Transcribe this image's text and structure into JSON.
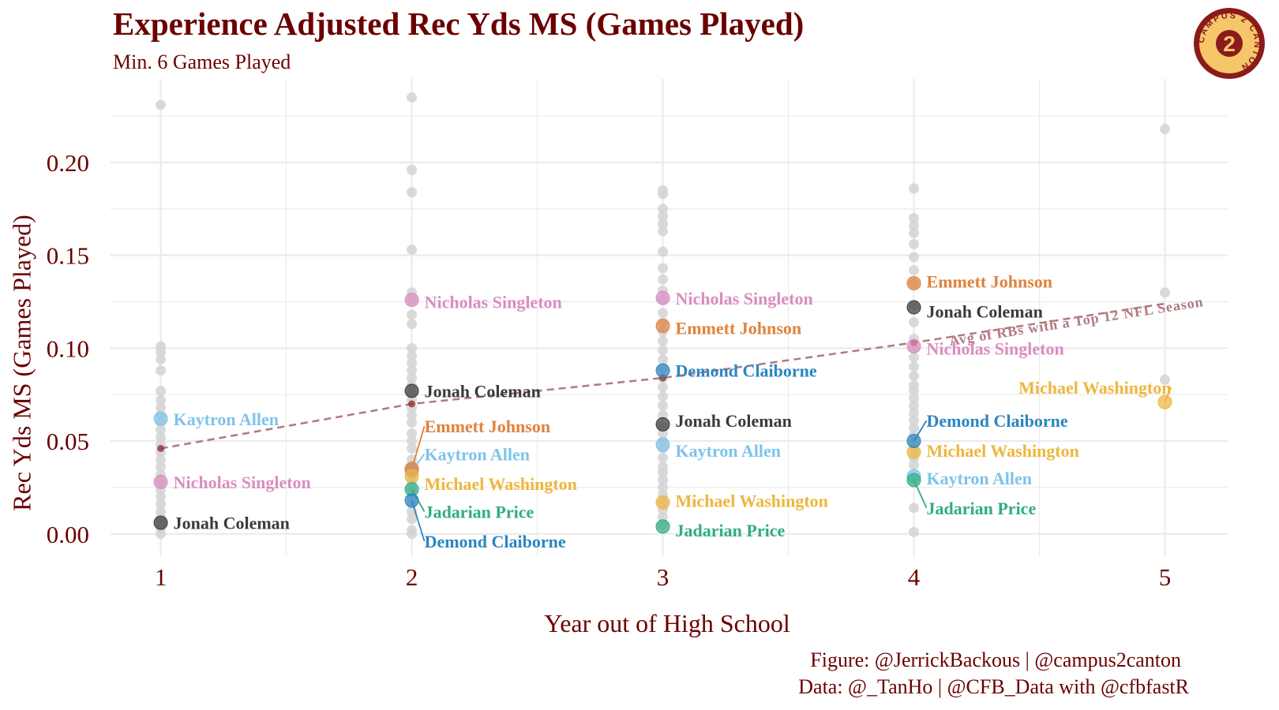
{
  "chart_data": {
    "type": "scatter",
    "title": "Experience Adjusted Rec Yds MS (Games Played)",
    "subtitle": "Min. 6 Games Played",
    "xlabel": "Year out of High School",
    "ylabel": "Rec Yds MS (Games Played)",
    "xlim": [
      0.8,
      5.25
    ],
    "ylim": [
      -0.012,
      0.245
    ],
    "x_ticks": [
      1,
      2,
      3,
      4,
      5
    ],
    "y_ticks": [
      0.0,
      0.05,
      0.1,
      0.15,
      0.2
    ],
    "y_tick_labels": [
      "0.00",
      "0.05",
      "0.10",
      "0.15",
      "0.20"
    ],
    "grid": true,
    "background_points": [
      {
        "x": 1,
        "y": [
          0.231,
          0.101,
          0.098,
          0.094,
          0.088,
          0.077,
          0.072,
          0.068,
          0.064,
          0.06,
          0.056,
          0.052,
          0.048,
          0.044,
          0.04,
          0.036,
          0.032,
          0.028,
          0.024,
          0.02,
          0.016,
          0.012,
          0.009,
          0.006,
          0.003,
          0.0
        ]
      },
      {
        "x": 2,
        "y": [
          0.235,
          0.196,
          0.184,
          0.153,
          0.13,
          0.126,
          0.118,
          0.113,
          0.1,
          0.096,
          0.092,
          0.088,
          0.084,
          0.08,
          0.076,
          0.072,
          0.068,
          0.064,
          0.06,
          0.054,
          0.05,
          0.046,
          0.04,
          0.036,
          0.032,
          0.028,
          0.024,
          0.02,
          0.016,
          0.012,
          0.008,
          0.002,
          0.0
        ]
      },
      {
        "x": 3,
        "y": [
          0.185,
          0.183,
          0.175,
          0.171,
          0.167,
          0.163,
          0.152,
          0.143,
          0.137,
          0.131,
          0.126,
          0.119,
          0.114,
          0.109,
          0.104,
          0.099,
          0.094,
          0.089,
          0.084,
          0.079,
          0.074,
          0.069,
          0.064,
          0.058,
          0.054,
          0.05,
          0.046,
          0.041,
          0.036,
          0.033,
          0.029,
          0.025,
          0.021,
          0.017,
          0.013,
          0.009,
          0.005
        ]
      },
      {
        "x": 4,
        "y": [
          0.186,
          0.17,
          0.166,
          0.162,
          0.156,
          0.149,
          0.142,
          0.135,
          0.123,
          0.114,
          0.105,
          0.1,
          0.095,
          0.09,
          0.085,
          0.08,
          0.077,
          0.073,
          0.069,
          0.065,
          0.061,
          0.057,
          0.053,
          0.049,
          0.045,
          0.041,
          0.037,
          0.014,
          0.001
        ]
      },
      {
        "x": 5,
        "y": [
          0.218,
          0.13,
          0.083
        ]
      }
    ],
    "avg_line": {
      "label": "Avg of RBs with a Top 12 NFL Season",
      "points": [
        {
          "x": 1,
          "y": 0.046
        },
        {
          "x": 2,
          "y": 0.07
        },
        {
          "x": 3,
          "y": 0.084
        },
        {
          "x": 4,
          "y": 0.103
        },
        {
          "x": 5,
          "y": 0.124
        }
      ]
    },
    "series": [
      {
        "name": "Kaytron Allen",
        "color": "#7EC3EA",
        "points": [
          {
            "x": 1,
            "y": 0.062
          },
          {
            "x": 2,
            "y": 0.034
          },
          {
            "x": 3,
            "y": 0.048
          },
          {
            "x": 4,
            "y": 0.031
          }
        ]
      },
      {
        "name": "Nicholas Singleton",
        "color": "#D98DC0",
        "points": [
          {
            "x": 1,
            "y": 0.028
          },
          {
            "x": 2,
            "y": 0.126
          },
          {
            "x": 3,
            "y": 0.127
          },
          {
            "x": 4,
            "y": 0.101
          }
        ]
      },
      {
        "name": "Jonah Coleman",
        "color": "#3A3A3A",
        "points": [
          {
            "x": 1,
            "y": 0.006
          },
          {
            "x": 2,
            "y": 0.077
          },
          {
            "x": 3,
            "y": 0.059
          },
          {
            "x": 4,
            "y": 0.122
          }
        ]
      },
      {
        "name": "Emmett Johnson",
        "color": "#E0823A",
        "points": [
          {
            "x": 2,
            "y": 0.035
          },
          {
            "x": 3,
            "y": 0.112
          },
          {
            "x": 4,
            "y": 0.135
          }
        ]
      },
      {
        "name": "Michael Washington",
        "color": "#EEB63E",
        "points": [
          {
            "x": 2,
            "y": 0.031
          },
          {
            "x": 3,
            "y": 0.017
          },
          {
            "x": 4,
            "y": 0.044
          },
          {
            "x": 5,
            "y": 0.071
          }
        ]
      },
      {
        "name": "Jadarian Price",
        "color": "#2FAD84",
        "points": [
          {
            "x": 2,
            "y": 0.024
          },
          {
            "x": 3,
            "y": 0.004
          },
          {
            "x": 4,
            "y": 0.029
          }
        ]
      },
      {
        "name": "Demond Claiborne",
        "color": "#2A86C0",
        "points": [
          {
            "x": 2,
            "y": 0.018
          },
          {
            "x": 3,
            "y": 0.088
          },
          {
            "x": 4,
            "y": 0.05
          }
        ]
      }
    ],
    "labels": [
      {
        "text": "Kaytron Allen",
        "series": 0,
        "x": 1,
        "y": 0.062,
        "ly": 0.062
      },
      {
        "text": "Nicholas Singleton",
        "series": 1,
        "x": 1,
        "y": 0.028,
        "ly": 0.028
      },
      {
        "text": "Jonah Coleman",
        "series": 2,
        "x": 1,
        "y": 0.006,
        "ly": 0.006
      },
      {
        "text": "Nicholas Singleton",
        "series": 1,
        "x": 2,
        "y": 0.126,
        "ly": 0.125
      },
      {
        "text": "Jonah Coleman",
        "series": 2,
        "x": 2,
        "y": 0.077,
        "ly": 0.077
      },
      {
        "text": "Emmett Johnson",
        "series": 3,
        "x": 2,
        "y": 0.035,
        "ly": 0.058
      },
      {
        "text": "Kaytron Allen",
        "series": 0,
        "x": 2,
        "y": 0.034,
        "ly": 0.043
      },
      {
        "text": "Michael Washington",
        "series": 4,
        "x": 2,
        "y": 0.031,
        "ly": 0.027
      },
      {
        "text": "Jadarian Price",
        "series": 5,
        "x": 2,
        "y": 0.024,
        "ly": 0.012
      },
      {
        "text": "Demond Claiborne",
        "series": 6,
        "x": 2,
        "y": 0.018,
        "ly": -0.004
      },
      {
        "text": "Nicholas Singleton",
        "series": 1,
        "x": 3,
        "y": 0.127,
        "ly": 0.127
      },
      {
        "text": "Emmett Johnson",
        "series": 3,
        "x": 3,
        "y": 0.112,
        "ly": 0.111
      },
      {
        "text": "Demond Claiborne",
        "series": 6,
        "x": 3,
        "y": 0.088,
        "ly": 0.088
      },
      {
        "text": "Jonah Coleman",
        "series": 2,
        "x": 3,
        "y": 0.059,
        "ly": 0.061
      },
      {
        "text": "Kaytron Allen",
        "series": 0,
        "x": 3,
        "y": 0.048,
        "ly": 0.045
      },
      {
        "text": "Michael Washington",
        "series": 4,
        "x": 3,
        "y": 0.017,
        "ly": 0.018
      },
      {
        "text": "Jadarian Price",
        "series": 5,
        "x": 3,
        "y": 0.004,
        "ly": 0.002
      },
      {
        "text": "Emmett Johnson",
        "series": 3,
        "x": 4,
        "y": 0.135,
        "ly": 0.136
      },
      {
        "text": "Jonah Coleman",
        "series": 2,
        "x": 4,
        "y": 0.122,
        "ly": 0.12
      },
      {
        "text": "Nicholas Singleton",
        "series": 1,
        "x": 4,
        "y": 0.101,
        "ly": 0.1
      },
      {
        "text": "Demond Claiborne",
        "series": 6,
        "x": 4,
        "y": 0.05,
        "ly": 0.061
      },
      {
        "text": "Michael Washington",
        "series": 4,
        "x": 4,
        "y": 0.044,
        "ly": 0.045
      },
      {
        "text": "Kaytron Allen",
        "series": 0,
        "x": 4,
        "y": 0.031,
        "ly": 0.03
      },
      {
        "text": "Jadarian Price",
        "series": 5,
        "x": 4,
        "y": 0.029,
        "ly": 0.014
      },
      {
        "text": "Michael Washington",
        "series": 4,
        "x": 5,
        "y": 0.071,
        "ly": 0.079,
        "anchor": "end"
      }
    ],
    "colors": {
      "title": "#6B0000",
      "grid": "#EBEBEB",
      "background_point": "#D3D3D3",
      "avg_line": "#B07A80",
      "avg_point": "#8B2A2A"
    }
  },
  "caption": {
    "figure": "Figure: @JerrickBackous | @campus2canton",
    "data": "Data: @_TanHo | @CFB_Data with @cfbfastR"
  },
  "logo": {
    "text": "CAMPUS 2 CANTON",
    "number": "2",
    "colors": {
      "ring": "#8B1A1A",
      "fill": "#F6C66B"
    }
  }
}
